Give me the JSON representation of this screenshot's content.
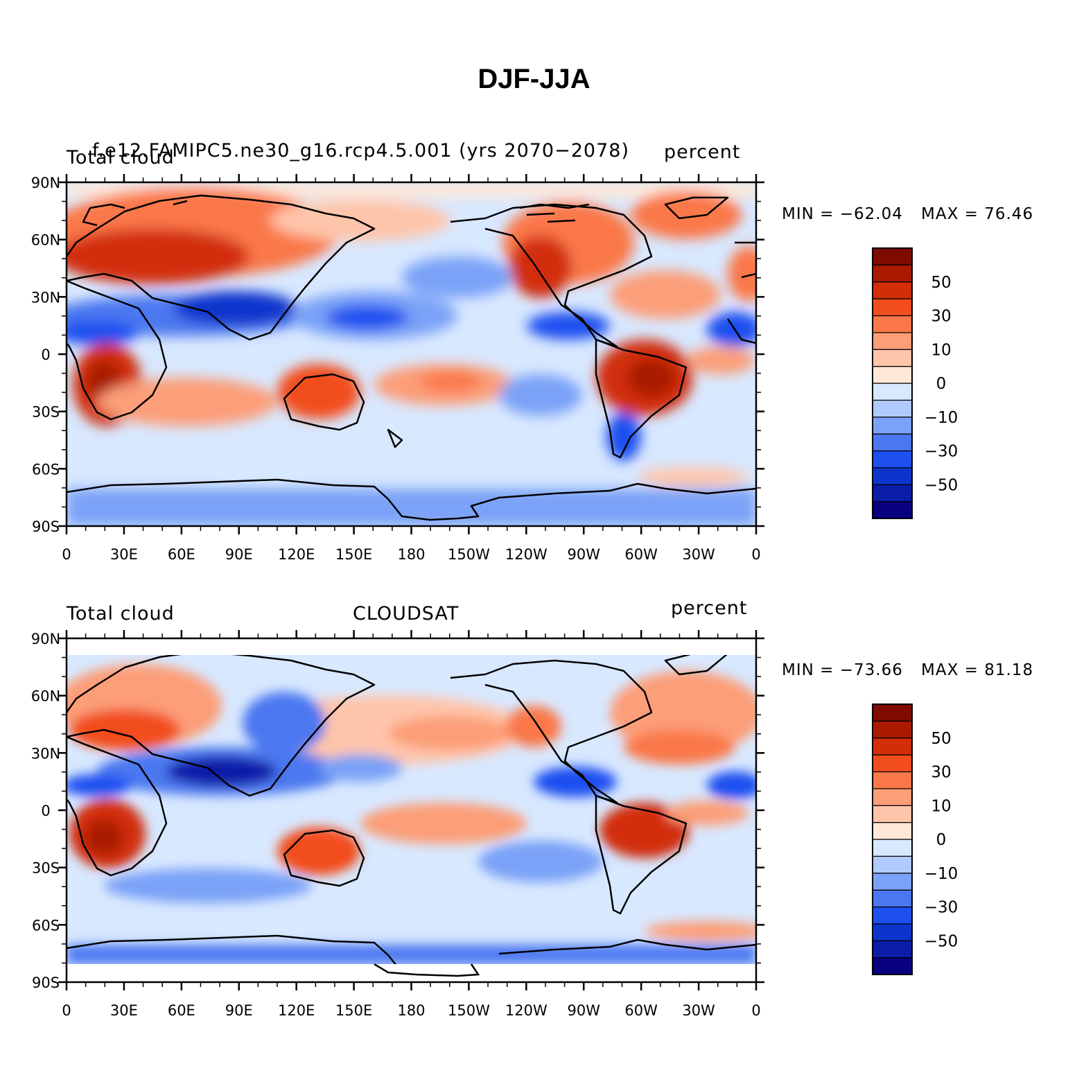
{
  "title": "DJF-JJA",
  "colorbar": {
    "colors": [
      "#08007f",
      "#0a1ea8",
      "#0d35cc",
      "#1e50f0",
      "#4b78f0",
      "#7aa2f7",
      "#b0caff",
      "#d8e8ff",
      "#ffe8d8",
      "#ffc5aa",
      "#fc9e78",
      "#fa7848",
      "#f24e1d",
      "#d22e08",
      "#a91a00",
      "#7f0a00"
    ],
    "labels": [
      "−50",
      "−30",
      "−10",
      "0",
      "10",
      "30",
      "50"
    ]
  },
  "axes": {
    "lat_ticks": [
      "90N",
      "60N",
      "30N",
      "0",
      "30S",
      "60S",
      "90S"
    ],
    "lon_ticks": [
      "0",
      "30E",
      "60E",
      "90E",
      "120E",
      "150E",
      "180",
      "150W",
      "120W",
      "90W",
      "60W",
      "30W",
      "0"
    ]
  },
  "panels": [
    {
      "left_label": "Total cloud",
      "center_label": "f.e12.FAMIPC5.ne30_g16.rcp4.5.001 (yrs 2070−2078)",
      "right_label": "percent",
      "min_label": "MIN = −62.04",
      "max_label": "MAX =  76.46",
      "min": -62.04,
      "max": 76.46
    },
    {
      "left_label": "Total cloud",
      "center_label": "CLOUDSAT",
      "right_label": "percent",
      "min_label": "MIN = −73.66",
      "max_label": "MAX =  81.18",
      "min": -73.66,
      "max": 81.18
    }
  ]
}
